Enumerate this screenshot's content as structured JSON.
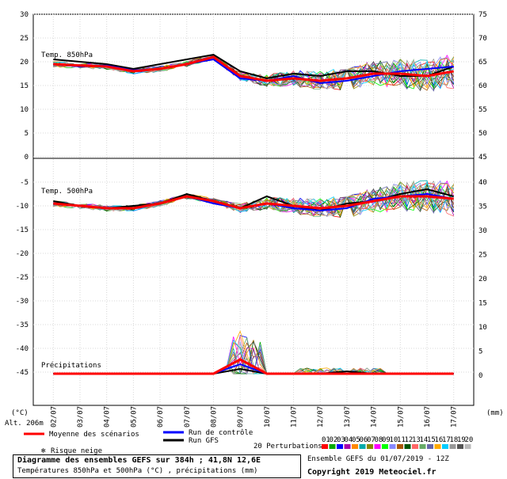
{
  "chart_data": {
    "type": "line",
    "x": [
      "02/07",
      "03/07",
      "04/07",
      "05/07",
      "06/07",
      "07/07",
      "08/07",
      "09/07",
      "10/07",
      "11/07",
      "12/07",
      "13/07",
      "14/07",
      "15/07",
      "16/07",
      "17/07"
    ],
    "left_axis": {
      "unit": "(°C)",
      "ticks": [
        30,
        25,
        20,
        15,
        10,
        5,
        0,
        -5,
        -10,
        -15,
        -20,
        -25,
        -30,
        -35,
        -40,
        -45
      ]
    },
    "right_axis_top": {
      "ticks": [
        75,
        70,
        65,
        60,
        55,
        50,
        45
      ]
    },
    "right_axis_bottom": {
      "unit": "(mm)",
      "ticks": [
        40,
        35,
        30,
        25,
        20,
        15,
        10,
        5,
        0
      ]
    },
    "altitude_label": "Alt. 206m",
    "panels": [
      {
        "label": "Temp. 850hPa",
        "series": [
          {
            "name": "Moyenne des scénarios",
            "color": "#ff0000",
            "values": [
              19.5,
              19.2,
              19.0,
              18.0,
              18.5,
              19.5,
              21.0,
              17.0,
              16.0,
              16.5,
              16.0,
              16.5,
              17.5,
              17.5,
              17.0,
              18.0
            ]
          },
          {
            "name": "Run GFS",
            "color": "#000000",
            "values": [
              20.5,
              20.0,
              19.5,
              18.5,
              19.5,
              20.5,
              21.5,
              18.0,
              16.5,
              17.5,
              17.0,
              18.0,
              18.0,
              17.0,
              17.0,
              19.0
            ]
          },
          {
            "name": "Run de contrôle",
            "color": "#0000ff",
            "values": [
              19.5,
              19.0,
              19.2,
              18.2,
              18.5,
              19.5,
              20.5,
              16.5,
              16.0,
              17.0,
              15.5,
              16.0,
              17.0,
              18.0,
              18.5,
              19.0
            ]
          }
        ]
      },
      {
        "label": "Temp. 500hPa",
        "series": [
          {
            "name": "Moyenne des scénarios",
            "color": "#ff0000",
            "values": [
              -9.5,
              -10.0,
              -10.5,
              -10.5,
              -9.5,
              -8.0,
              -9.0,
              -10.5,
              -9.5,
              -10.0,
              -10.5,
              -10.0,
              -9.0,
              -8.0,
              -8.0,
              -8.5
            ]
          },
          {
            "name": "Run GFS",
            "color": "#000000",
            "values": [
              -9.0,
              -10.0,
              -10.5,
              -10.0,
              -9.5,
              -7.5,
              -9.0,
              -10.5,
              -8.0,
              -10.0,
              -11.0,
              -9.5,
              -9.0,
              -7.5,
              -6.5,
              -8.0
            ]
          },
          {
            "name": "Run de contrôle",
            "color": "#0000ff",
            "values": [
              -9.5,
              -10.0,
              -10.5,
              -10.5,
              -9.5,
              -8.0,
              -9.5,
              -10.5,
              -9.5,
              -10.5,
              -11.0,
              -10.5,
              -8.5,
              -8.0,
              -7.5,
              -8.5
            ]
          }
        ]
      },
      {
        "label": "Précipitations",
        "series": [
          {
            "name": "Moyenne des scénarios",
            "color": "#ff0000",
            "values": [
              0,
              0,
              0,
              0,
              0,
              0,
              0,
              3,
              0,
              0,
              0,
              0,
              0,
              0,
              0,
              0
            ]
          },
          {
            "name": "Run GFS",
            "color": "#000000",
            "values": [
              0,
              0,
              0,
              0,
              0,
              0,
              0,
              1,
              0,
              0,
              0,
              0.5,
              0,
              0,
              0,
              0
            ]
          },
          {
            "name": "Run de contrôle",
            "color": "#0000ff",
            "values": [
              0,
              0,
              0,
              0,
              0,
              0,
              0,
              2,
              0,
              0,
              0,
              0,
              0,
              0,
              0,
              0
            ]
          }
        ],
        "max_spread_peak_mm": 21
      }
    ],
    "legend": {
      "items": [
        {
          "label": "Moyenne des scénarios",
          "color": "#ff0000"
        },
        {
          "label": "Run de contrôle",
          "color": "#0000ff"
        },
        {
          "label": "Run GFS",
          "color": "#000000"
        }
      ],
      "snow_label": "Risque neige",
      "perturbations_label": "20 Perturbations",
      "perturbation_codes": [
        "01",
        "02",
        "03",
        "04",
        "05",
        "06",
        "07",
        "08",
        "09",
        "10",
        "11",
        "12",
        "13",
        "14",
        "15",
        "16",
        "17",
        "18",
        "19",
        "20"
      ],
      "perturbation_colors": [
        "#ff0000",
        "#00aa00",
        "#0000ff",
        "#aa00aa",
        "#ff8800",
        "#00aaaa",
        "#888800",
        "#ff00ff",
        "#00ff00",
        "#8888ff",
        "#aa5500",
        "#005500",
        "#ff6666",
        "#66aa66",
        "#6666aa",
        "#ffaa00",
        "#00ccff",
        "#999999",
        "#555555",
        "#bbbbbb"
      ]
    },
    "grid": true
  },
  "footer": {
    "title": "Diagramme des ensembles GEFS sur 384h ; 41,8N 12,6E",
    "subtitle": "Températures 850hPa et 500hPa (°C) , précipitations (mm)",
    "ensemble_label": "Ensemble GEFS du 01/07/2019 - 12Z",
    "copyright": "Copyright 2019 Meteociel.fr"
  }
}
